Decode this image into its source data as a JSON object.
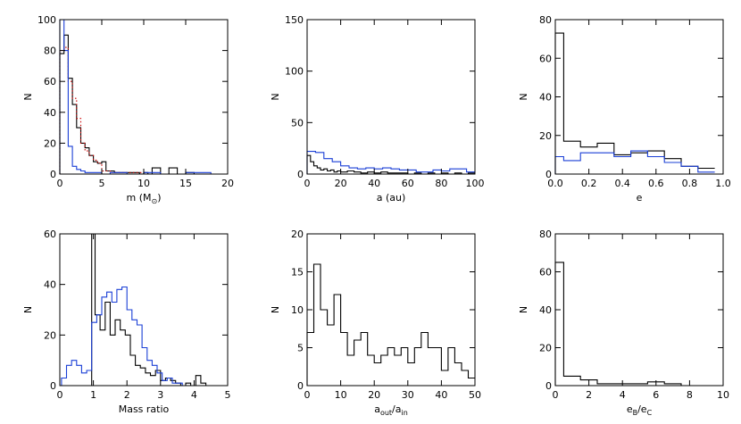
{
  "chart_data": [
    {
      "type": "histogram",
      "xlabel": "m (M",
      "xlabel_symbol": "⊙",
      "xlabel_suffix": ")",
      "ylabel": "N",
      "xlim": [
        0,
        20
      ],
      "ylim": [
        0,
        100
      ],
      "xticks": [
        0,
        5,
        10,
        15,
        20
      ],
      "yticks": [
        0,
        20,
        40,
        60,
        80,
        100
      ],
      "series": [
        {
          "color": "#000000",
          "style": "solid",
          "x": [
            0,
            0.5,
            1.0,
            1.5,
            2.0,
            2.5,
            3.0,
            3.5,
            4.0,
            4.5,
            5.0,
            5.5,
            6.0,
            6.5,
            7.0,
            7.5,
            8.0,
            8.5,
            9.0,
            9.5,
            10.0,
            10.5,
            11.0,
            12.0,
            13.0,
            14.0,
            15.0,
            16.0,
            20.0
          ],
          "values": [
            78,
            90,
            62,
            45,
            30,
            20,
            17,
            12,
            8,
            7,
            8,
            2,
            2,
            1,
            1,
            1,
            1,
            1,
            1,
            0,
            1,
            0,
            4,
            0,
            4,
            0,
            1,
            0
          ]
        },
        {
          "color": "#cc0000",
          "style": "dotted",
          "x": [
            0,
            0.5,
            1.0,
            1.5,
            2.0,
            2.5,
            3.0,
            3.5,
            4.0,
            4.5,
            5.0,
            6.0,
            7.0,
            8.0,
            9.0,
            10.0,
            12.0
          ],
          "values": [
            80,
            82,
            60,
            49,
            36,
            20,
            15,
            12,
            9,
            7,
            2,
            1,
            1,
            1,
            1,
            0
          ]
        },
        {
          "color": "#1a3fd6",
          "style": "solid",
          "x": [
            0,
            0.5,
            1.0,
            1.5,
            2.0,
            2.5,
            3.0,
            3.5,
            4.0,
            5.0,
            6.0,
            8.0,
            10.0,
            12.0,
            15.0,
            18.0,
            20.0
          ],
          "values": [
            100,
            80,
            18,
            5,
            3,
            2,
            1,
            1,
            1,
            0,
            1,
            0,
            1,
            0,
            1,
            0
          ]
        }
      ]
    },
    {
      "type": "histogram",
      "xlabel": "a (au)",
      "ylabel": "N",
      "xlim": [
        0,
        100
      ],
      "ylim": [
        0,
        150
      ],
      "xticks": [
        0,
        20,
        40,
        60,
        80,
        100
      ],
      "yticks": [
        0,
        50,
        100,
        150
      ],
      "series": [
        {
          "color": "#000000",
          "style": "solid",
          "x": [
            0,
            2,
            4,
            6,
            8,
            10,
            12,
            14,
            16,
            18,
            20,
            24,
            28,
            32,
            36,
            40,
            44,
            48,
            52,
            56,
            60,
            64,
            68,
            72,
            76,
            80,
            84,
            88,
            92,
            96,
            100
          ],
          "values": [
            18,
            12,
            8,
            6,
            4,
            5,
            3,
            4,
            2,
            3,
            2,
            3,
            2,
            1,
            2,
            1,
            2,
            1,
            1,
            1,
            0,
            1,
            0,
            1,
            0,
            1,
            0,
            1,
            0,
            1
          ]
        },
        {
          "color": "#1a3fd6",
          "style": "solid",
          "x": [
            0,
            5,
            10,
            15,
            20,
            25,
            30,
            35,
            40,
            45,
            50,
            55,
            60,
            65,
            70,
            75,
            80,
            85,
            90,
            95,
            100
          ],
          "values": [
            22,
            21,
            15,
            12,
            8,
            6,
            5,
            6,
            5,
            6,
            5,
            4,
            4,
            2,
            2,
            4,
            3,
            5,
            5,
            2
          ]
        }
      ]
    },
    {
      "type": "histogram",
      "xlabel": "e",
      "ylabel": "N",
      "xlim": [
        0,
        1.0
      ],
      "ylim": [
        0,
        80
      ],
      "xticks": [
        "0.0",
        "0.2",
        "0.4",
        "0.6",
        "0.8",
        "1.0"
      ],
      "yticks": [
        0,
        20,
        40,
        60,
        80
      ],
      "series": [
        {
          "color": "#000000",
          "style": "solid",
          "x": [
            0,
            0.05,
            0.15,
            0.25,
            0.35,
            0.45,
            0.55,
            0.65,
            0.75,
            0.85,
            0.95
          ],
          "values": [
            73,
            17,
            14,
            16,
            10,
            11,
            12,
            8,
            4,
            3
          ]
        },
        {
          "color": "#1a3fd6",
          "style": "solid",
          "x": [
            0,
            0.05,
            0.15,
            0.25,
            0.35,
            0.45,
            0.55,
            0.65,
            0.75,
            0.85,
            0.95
          ],
          "values": [
            9,
            7,
            11,
            11,
            9,
            12,
            9,
            6,
            4,
            1
          ]
        }
      ]
    },
    {
      "type": "histogram",
      "xlabel": "Mass ratio",
      "ylabel": "N",
      "xlim": [
        0,
        5
      ],
      "ylim": [
        0,
        60
      ],
      "xticks": [
        0,
        1,
        2,
        3,
        4,
        5
      ],
      "yticks": [
        0,
        20,
        40,
        60
      ],
      "series": [
        {
          "color": "#000000",
          "style": "solid",
          "x": [
            0.95,
            1.05,
            1.2,
            1.35,
            1.5,
            1.65,
            1.8,
            1.95,
            2.1,
            2.25,
            2.4,
            2.55,
            2.7,
            2.85,
            3.0,
            3.15,
            3.3,
            3.45,
            3.6,
            3.75,
            3.9,
            4.05,
            4.2,
            4.35,
            4.5,
            4.65,
            4.8
          ],
          "values": [
            60,
            28,
            22,
            33,
            20,
            26,
            22,
            20,
            12,
            8,
            7,
            5,
            4,
            6,
            2,
            3,
            2,
            1,
            0,
            1,
            0,
            4,
            1,
            0,
            0,
            0
          ]
        },
        {
          "color": "#1a3fd6",
          "style": "solid",
          "x": [
            0.05,
            0.2,
            0.35,
            0.5,
            0.65,
            0.8,
            0.95,
            1.1,
            1.25,
            1.4,
            1.55,
            1.7,
            1.85,
            2.0,
            2.15,
            2.3,
            2.45,
            2.6,
            2.75,
            2.9,
            3.05,
            3.2,
            3.35,
            3.5,
            3.65,
            3.8,
            3.95,
            4.1
          ],
          "values": [
            3,
            8,
            10,
            8,
            5,
            6,
            25,
            28,
            35,
            37,
            33,
            38,
            39,
            30,
            26,
            24,
            15,
            10,
            8,
            5,
            2,
            3,
            1,
            1,
            0,
            0,
            0
          ]
        }
      ]
    },
    {
      "type": "histogram",
      "xlabel_main": "a",
      "xlabel_sub1": "out",
      "xlabel_mid": "/a",
      "xlabel_sub2": "in",
      "ylabel": "N",
      "xlim": [
        0,
        50
      ],
      "ylim": [
        0,
        20
      ],
      "xticks": [
        0,
        10,
        20,
        30,
        40,
        50
      ],
      "yticks": [
        0,
        5,
        10,
        15,
        20
      ],
      "series": [
        {
          "color": "#000000",
          "style": "solid",
          "x": [
            0,
            2,
            4,
            6,
            8,
            10,
            12,
            14,
            16,
            18,
            20,
            22,
            24,
            26,
            28,
            30,
            32,
            34,
            36,
            40,
            42,
            44,
            46,
            48,
            50
          ],
          "values": [
            7,
            16,
            10,
            8,
            12,
            7,
            4,
            6,
            7,
            4,
            3,
            4,
            5,
            4,
            5,
            3,
            5,
            7,
            5,
            2,
            5,
            3,
            2,
            1
          ]
        }
      ]
    },
    {
      "type": "histogram",
      "xlabel_main": "e",
      "xlabel_sub1": "B",
      "xlabel_mid": "/e",
      "xlabel_sub2": "C",
      "ylabel": "N",
      "xlim": [
        0,
        10
      ],
      "ylim": [
        0,
        80
      ],
      "xticks": [
        0,
        2,
        4,
        6,
        8,
        10
      ],
      "yticks": [
        0,
        20,
        40,
        60,
        80
      ],
      "series": [
        {
          "color": "#000000",
          "style": "solid",
          "x": [
            0,
            0.5,
            1.5,
            2.5,
            3.5,
            4.5,
            5.5,
            6.5,
            7.5,
            8.5,
            10
          ],
          "values": [
            65,
            5,
            3,
            1,
            1,
            1,
            2,
            1,
            0,
            0
          ]
        }
      ]
    }
  ]
}
